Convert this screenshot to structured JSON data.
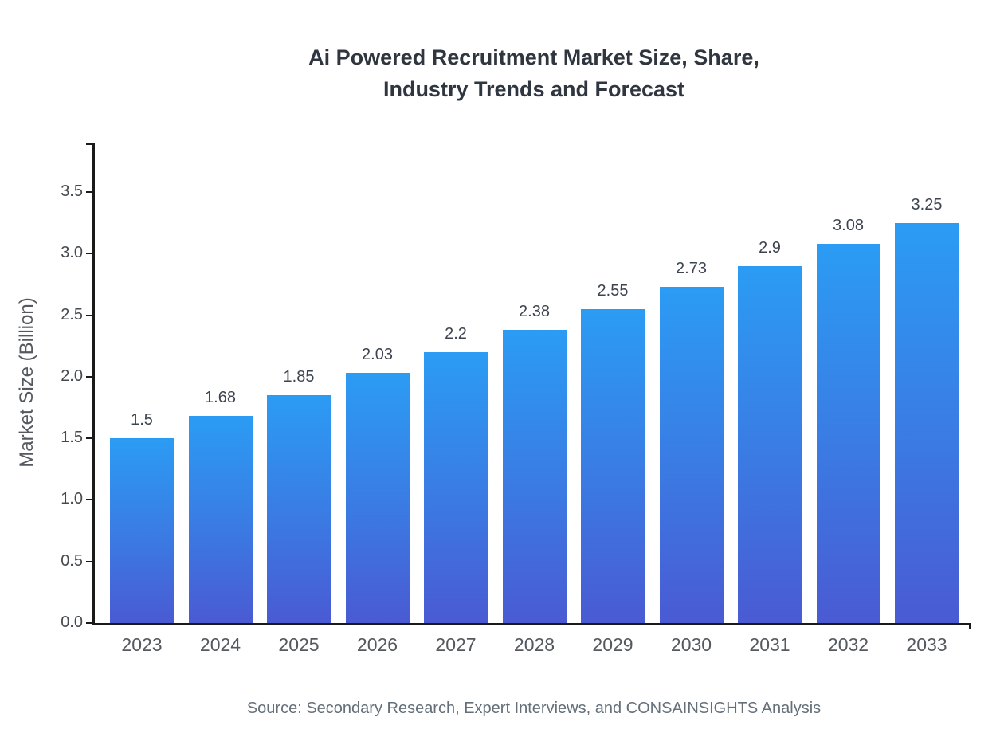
{
  "title": {
    "line1": "Ai Powered Recruitment Market Size, Share,",
    "line2": "Industry Trends and Forecast"
  },
  "source": "Source: Secondary Research, Expert Interviews, and CONSAINSIGHTS Analysis",
  "chart_data": {
    "type": "bar",
    "title": "Ai Powered Recruitment Market Size, Share, Industry Trends and Forecast",
    "categories": [
      "2023",
      "2024",
      "2025",
      "2026",
      "2027",
      "2028",
      "2029",
      "2030",
      "2031",
      "2032",
      "2033"
    ],
    "values": [
      1.5,
      1.68,
      1.85,
      2.03,
      2.2,
      2.38,
      2.55,
      2.73,
      2.9,
      3.08,
      3.25
    ],
    "value_labels": [
      "1.5",
      "1.68",
      "1.85",
      "2.03",
      "2.2",
      "2.38",
      "2.55",
      "2.73",
      "2.9",
      "3.08",
      "3.25"
    ],
    "xlabel": "",
    "ylabel": "Market Size (Billion)",
    "ylim": [
      0,
      3.9
    ],
    "yticks": [
      "0.0",
      "0.5",
      "1.0",
      "1.5",
      "2.0",
      "2.5",
      "3.0",
      "3.5"
    ],
    "grid": false,
    "legend": "none",
    "bar_gradient_top": "#2b9cf4",
    "bar_gradient_bottom": "#4a5ad3"
  },
  "colors": {
    "title": "#2f3640",
    "axis": "#1a1a1a",
    "tick_label": "#454a50",
    "value_label": "#3d4451",
    "source": "#646f7a"
  }
}
